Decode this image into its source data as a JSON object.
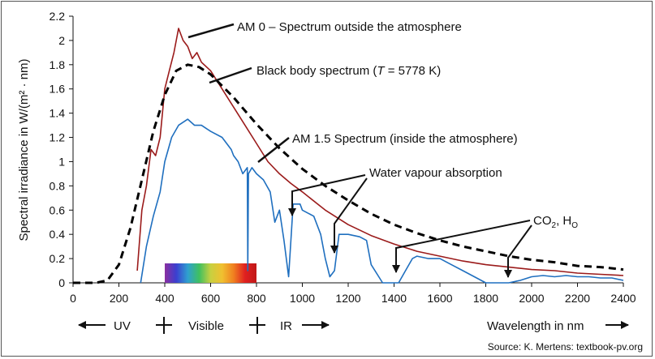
{
  "chart_data": {
    "type": "line",
    "xlabel": "Wavelength in nm",
    "ylabel": "Spectral irradiance in W/(m² · nm)",
    "xlim": [
      0,
      2400
    ],
    "ylim": [
      0,
      2.2
    ],
    "x_ticks": [
      "0",
      "200",
      "400",
      "600",
      "800",
      "1000",
      "1200",
      "1400",
      "1600",
      "1800",
      "2000",
      "2200",
      "2400"
    ],
    "y_ticks": [
      "0",
      "0.2",
      "0.4",
      "0.6",
      "0.8",
      "1",
      "1.2",
      "1.4",
      "1.6",
      "1.8",
      "2",
      "2.2"
    ],
    "series": [
      {
        "color": "#9b1b1b",
        "x": [
          280,
          300,
          320,
          340,
          360,
          380,
          400,
          420,
          440,
          460,
          480,
          500,
          520,
          540,
          560,
          600,
          650,
          700,
          750,
          800,
          850,
          900,
          950,
          1000,
          1100,
          1200,
          1300,
          1400,
          1500,
          1600,
          1700,
          1800,
          1900,
          2000,
          2100,
          2200,
          2300,
          2400
        ],
        "y": [
          0.1,
          0.6,
          0.8,
          1.1,
          1.05,
          1.2,
          1.6,
          1.75,
          1.9,
          2.1,
          2.0,
          1.95,
          1.85,
          1.9,
          1.82,
          1.75,
          1.6,
          1.45,
          1.3,
          1.15,
          1.0,
          0.9,
          0.82,
          0.75,
          0.6,
          0.48,
          0.39,
          0.32,
          0.26,
          0.22,
          0.18,
          0.15,
          0.13,
          0.11,
          0.1,
          0.08,
          0.07,
          0.06
        ]
      },
      {
        "color": "#1f6fbf",
        "x": [
          295,
          320,
          350,
          380,
          400,
          430,
          460,
          500,
          530,
          560,
          600,
          650,
          690,
          700,
          720,
          740,
          760,
          762,
          765,
          780,
          800,
          830,
          860,
          880,
          900,
          920,
          940,
          960,
          990,
          1000,
          1050,
          1080,
          1100,
          1120,
          1140,
          1160,
          1200,
          1250,
          1280,
          1300,
          1350,
          1380,
          1400,
          1420,
          1450,
          1480,
          1500,
          1550,
          1600,
          1650,
          1700,
          1750,
          1800,
          1850,
          1900,
          1950,
          2000,
          2050,
          2100,
          2150,
          2200,
          2250,
          2300,
          2350,
          2400
        ],
        "y": [
          0.0,
          0.3,
          0.55,
          0.75,
          1.0,
          1.2,
          1.3,
          1.35,
          1.3,
          1.3,
          1.25,
          1.2,
          1.1,
          1.05,
          1.0,
          0.9,
          0.95,
          0.1,
          0.9,
          0.95,
          0.9,
          0.85,
          0.75,
          0.5,
          0.6,
          0.35,
          0.05,
          0.65,
          0.65,
          0.6,
          0.55,
          0.4,
          0.2,
          0.05,
          0.1,
          0.4,
          0.4,
          0.38,
          0.35,
          0.15,
          0.0,
          0.0,
          0.0,
          0.0,
          0.1,
          0.2,
          0.22,
          0.2,
          0.2,
          0.15,
          0.1,
          0.05,
          0.0,
          0.0,
          0.0,
          0.02,
          0.05,
          0.06,
          0.05,
          0.06,
          0.05,
          0.05,
          0.04,
          0.04,
          0.02
        ]
      },
      {
        "color": "#000000",
        "dash": true,
        "x": [
          0,
          100,
          150,
          200,
          250,
          300,
          350,
          400,
          450,
          500,
          550,
          600,
          700,
          800,
          900,
          1000,
          1100,
          1200,
          1300,
          1400,
          1500,
          1600,
          1700,
          1800,
          1900,
          2000,
          2100,
          2200,
          2300,
          2400
        ],
        "y": [
          0.0,
          0.0,
          0.02,
          0.15,
          0.45,
          0.85,
          1.25,
          1.55,
          1.75,
          1.8,
          1.78,
          1.72,
          1.53,
          1.31,
          1.11,
          0.94,
          0.8,
          0.68,
          0.57,
          0.48,
          0.41,
          0.35,
          0.3,
          0.26,
          0.22,
          0.19,
          0.17,
          0.14,
          0.13,
          0.11
        ]
      }
    ],
    "annotations": [
      {
        "text": "AM 0 – Spectrum outside the atmosphere"
      },
      {
        "text": "AM 1.5 Spectrum (inside the atmosphere)"
      },
      {
        "text": "Water vapour absorption"
      }
    ],
    "bb_label": {
      "prefix": "Black body spectrum (",
      "italic": "T",
      "suffix": " = 5778 K)"
    },
    "co2_label": {
      "part1": "CO",
      "sub1": "2",
      "part2": ", H",
      "sub2": "O",
      "part3": ""
    },
    "visible_band": {
      "from": 400,
      "to": 800,
      "colors": [
        "#8b2fa0",
        "#3b3fd0",
        "#2fa0d0",
        "#3fc060",
        "#c8d040",
        "#f0c030",
        "#f08020",
        "#e02020",
        "#c01818"
      ]
    },
    "bottom_bar": {
      "uv": "UV",
      "visible": "Visible",
      "ir": "IR",
      "wavelength": "Wavelength in nm"
    },
    "source": "Source: K. Mertens: textbook-pv.org"
  }
}
